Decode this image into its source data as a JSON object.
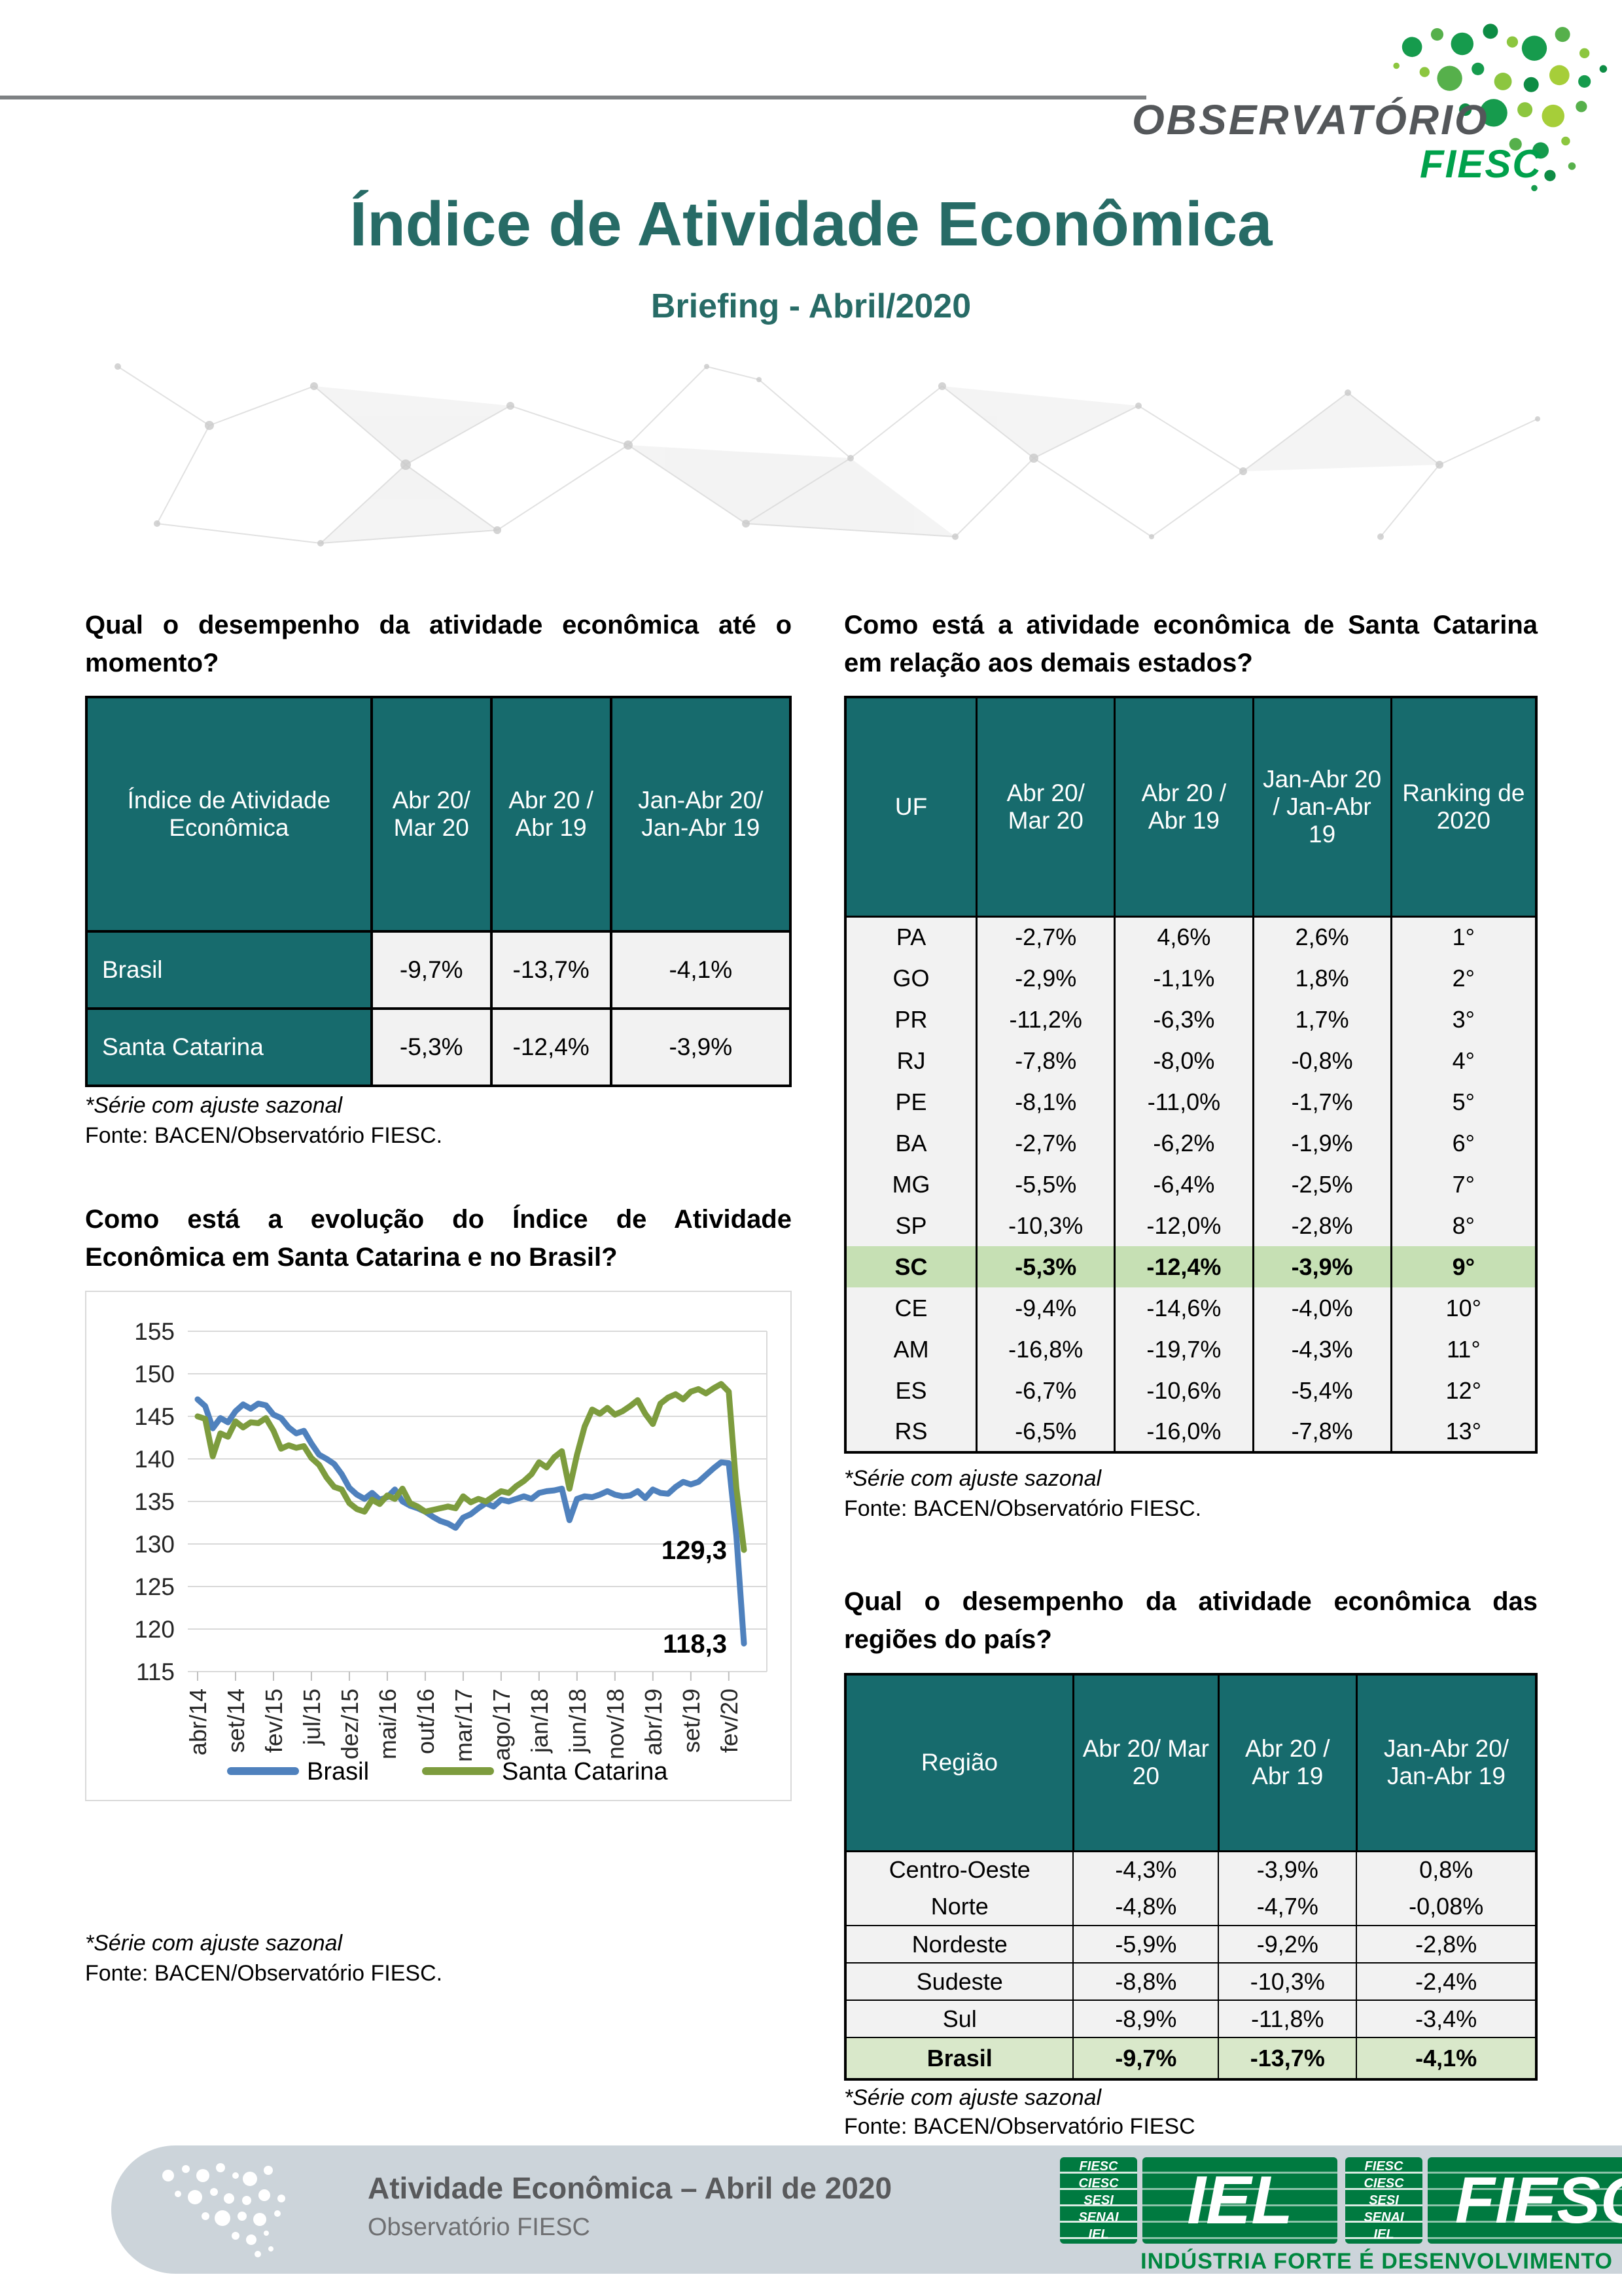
{
  "colors": {
    "teal": "#176b6d",
    "hl-green": "#c6e0b4",
    "hl-green2": "#d9e8ca",
    "title-teal": "#276b66",
    "brand-green": "#00a14b",
    "footer-green": "#007a40",
    "chart-blue": "#4f81bd",
    "chart-green": "#7d9c3e"
  },
  "header": {
    "logo_line1": "OBSERVATÓRIO",
    "logo_line2": "FIESC",
    "title": "Índice de Atividade Econômica",
    "subtitle": "Briefing - Abril/2020"
  },
  "q1": {
    "heading": "Qual o desempenho da atividade econômica até o momento?",
    "table": {
      "headers": [
        "Índice de Atividade Econômica",
        "Abr 20/ Mar 20",
        "Abr 20 / Abr 19",
        "Jan-Abr 20/ Jan-Abr 19"
      ],
      "rows": [
        {
          "cells": [
            "Brasil",
            "-9,7%",
            "-13,7%",
            "-4,1%"
          ],
          "highlight": false
        },
        {
          "cells": [
            "Santa Catarina",
            "-5,3%",
            "-12,4%",
            "-3,9%"
          ],
          "highlight": false
        }
      ]
    },
    "note_seasonal": "*Série com ajuste sazonal",
    "note_source": "Fonte: BACEN/Observatório FIESC."
  },
  "q2": {
    "heading": "Como está a evolução do Índice de Atividade Econômica em Santa Catarina e no Brasil?",
    "note_seasonal": "*Série com ajuste sazonal",
    "note_source": "Fonte: BACEN/Observatório FIESC."
  },
  "q3": {
    "heading": "Como está a atividade econômica de Santa Catarina em relação aos demais estados?",
    "table": {
      "headers": [
        "UF",
        "Abr 20/ Mar 20",
        "Abr 20 / Abr 19",
        "Jan-Abr 20 / Jan-Abr 19",
        "Ranking de 2020"
      ],
      "rows": [
        {
          "cells": [
            "PA",
            "-2,7%",
            "4,6%",
            "2,6%",
            "1°"
          ],
          "highlight": false
        },
        {
          "cells": [
            "GO",
            "-2,9%",
            "-1,1%",
            "1,8%",
            "2°"
          ],
          "highlight": false
        },
        {
          "cells": [
            "PR",
            "-11,2%",
            "-6,3%",
            "1,7%",
            "3°"
          ],
          "highlight": false
        },
        {
          "cells": [
            "RJ",
            "-7,8%",
            "-8,0%",
            "-0,8%",
            "4°"
          ],
          "highlight": false
        },
        {
          "cells": [
            "PE",
            "-8,1%",
            "-11,0%",
            "-1,7%",
            "5°"
          ],
          "highlight": false
        },
        {
          "cells": [
            "BA",
            "-2,7%",
            "-6,2%",
            "-1,9%",
            "6°"
          ],
          "highlight": false
        },
        {
          "cells": [
            "MG",
            "-5,5%",
            "-6,4%",
            "-2,5%",
            "7°"
          ],
          "highlight": false
        },
        {
          "cells": [
            "SP",
            "-10,3%",
            "-12,0%",
            "-2,8%",
            "8°"
          ],
          "highlight": false
        },
        {
          "cells": [
            "SC",
            "-5,3%",
            "-12,4%",
            "-3,9%",
            "9°"
          ],
          "highlight": true
        },
        {
          "cells": [
            "CE",
            "-9,4%",
            "-14,6%",
            "-4,0%",
            "10°"
          ],
          "highlight": false
        },
        {
          "cells": [
            "AM",
            "-16,8%",
            "-19,7%",
            "-4,3%",
            "11°"
          ],
          "highlight": false
        },
        {
          "cells": [
            "ES",
            "-6,7%",
            "-10,6%",
            "-5,4%",
            "12°"
          ],
          "highlight": false
        },
        {
          "cells": [
            "RS",
            "-6,5%",
            "-16,0%",
            "-7,8%",
            "13°"
          ],
          "highlight": false
        }
      ]
    },
    "note_seasonal": "*Série com ajuste sazonal",
    "note_source": "Fonte: BACEN/Observatório FIESC."
  },
  "q4": {
    "heading": "Qual o desempenho da atividade econômica das regiões do país?",
    "table": {
      "headers": [
        "Região",
        "Abr 20/ Mar 20",
        "Abr 20 / Abr 19",
        "Jan-Abr 20/ Jan-Abr 19"
      ],
      "rows": [
        {
          "cells": [
            "Centro-Oeste",
            "-4,3%",
            "-3,9%",
            "0,8%"
          ],
          "highlight": false
        },
        {
          "cells": [
            "Norte",
            "-4,8%",
            "-4,7%",
            "-0,08%"
          ],
          "highlight": false
        },
        {
          "cells": [
            "Nordeste",
            "-5,9%",
            "-9,2%",
            "-2,8%"
          ],
          "highlight": false
        },
        {
          "cells": [
            "Sudeste",
            "-8,8%",
            "-10,3%",
            "-2,4%"
          ],
          "highlight": false
        },
        {
          "cells": [
            "Sul",
            "-8,9%",
            "-11,8%",
            "-3,4%"
          ],
          "highlight": false
        },
        {
          "cells": [
            "Brasil",
            "-9,7%",
            "-13,7%",
            "-4,1%"
          ],
          "highlight": true
        }
      ]
    },
    "note_seasonal": "*Série com ajuste sazonal",
    "note_source": "Fonte: BACEN/Observatório FIESC"
  },
  "chart_data": {
    "type": "line",
    "title": "",
    "ylabel": "",
    "xlabel": "",
    "ylim": [
      115,
      155
    ],
    "ytick_step": 5,
    "grid": true,
    "legend_position": "bottom",
    "x_tick_every": 5,
    "x_tick_labels": [
      "abr/14",
      "set/14",
      "fev/15",
      "jul/15",
      "dez/15",
      "mai/16",
      "out/16",
      "mar/17",
      "ago/17",
      "jan/18",
      "jun/18",
      "nov/18",
      "abr/19",
      "set/19",
      "fev/20"
    ],
    "series": [
      {
        "name": "Brasil",
        "color": "#4f81bd",
        "end_label": "118,3",
        "values": [
          147.0,
          146.2,
          143.6,
          144.8,
          144.3,
          145.6,
          146.4,
          145.9,
          146.5,
          146.3,
          145.2,
          144.8,
          143.7,
          143.0,
          143.3,
          141.8,
          140.5,
          140.0,
          139.4,
          138.2,
          136.6,
          135.8,
          135.3,
          136.0,
          135.2,
          135.5,
          136.4,
          135.0,
          134.5,
          134.2,
          133.8,
          133.2,
          132.7,
          132.4,
          131.9,
          133.1,
          133.5,
          134.2,
          134.8,
          134.4,
          135.2,
          135.0,
          135.3,
          135.6,
          135.3,
          136.0,
          136.2,
          136.3,
          136.5,
          132.8,
          135.3,
          135.6,
          135.5,
          135.8,
          136.2,
          135.8,
          135.6,
          135.7,
          136.2,
          135.4,
          136.4,
          136.0,
          135.9,
          136.7,
          137.3,
          137.0,
          137.3,
          138.1,
          138.9,
          139.6,
          139.5,
          131.0,
          118.3
        ]
      },
      {
        "name": "Santa Catarina",
        "color": "#7d9c3e",
        "end_label": "129,3",
        "values": [
          145.0,
          144.7,
          140.3,
          143.0,
          142.6,
          144.4,
          143.7,
          144.3,
          144.2,
          144.8,
          143.3,
          141.2,
          141.6,
          141.3,
          141.5,
          140.1,
          139.3,
          137.8,
          136.7,
          136.4,
          134.8,
          134.1,
          133.8,
          135.2,
          134.7,
          135.7,
          135.3,
          136.5,
          134.8,
          134.4,
          133.8,
          134.0,
          134.2,
          134.4,
          134.2,
          135.6,
          134.9,
          135.3,
          135.0,
          135.6,
          136.2,
          136.0,
          136.8,
          137.4,
          138.2,
          139.6,
          139.0,
          140.2,
          140.9,
          136.5,
          140.5,
          143.8,
          145.8,
          145.3,
          146.0,
          145.2,
          145.6,
          146.2,
          146.9,
          145.3,
          144.1,
          146.5,
          147.2,
          147.6,
          147.0,
          147.9,
          148.2,
          147.7,
          148.3,
          148.8,
          147.9,
          136.6,
          129.3
        ]
      }
    ]
  },
  "footer": {
    "title": "Atividade Econômica – Abril de 2020",
    "subtitle": "Observatório FIESC",
    "logo_list": [
      "FIESC",
      "CIESC",
      "SESI",
      "SENAI",
      "IEL"
    ],
    "logo_big_1": "IEL",
    "logo_big_2": "FIESC",
    "tagline": "INDÚSTRIA FORTE É DESENVOLVIMENTO"
  }
}
